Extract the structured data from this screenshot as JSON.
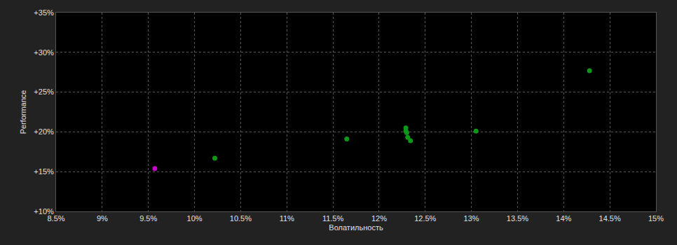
{
  "chart_data": {
    "type": "scatter",
    "x_label": "Волатильность",
    "y_label": "Performance",
    "x": [
      9.57,
      10.22,
      11.65,
      12.29,
      12.29,
      12.3,
      12.31,
      12.34,
      13.05,
      14.28
    ],
    "values": [
      15.4,
      16.7,
      19.1,
      20.5,
      20.1,
      19.9,
      19.3,
      18.9,
      20.1,
      27.7
    ],
    "colors": [
      "#cc00cc",
      "#109618",
      "#109618",
      "#109618",
      "#109618",
      "#109618",
      "#109618",
      "#109618",
      "#109618",
      "#109618"
    ],
    "marker": "circle",
    "xlim": [
      8.5,
      15
    ],
    "xticks": [
      {
        "value": 8.5,
        "label": "8.5%"
      },
      {
        "value": 9,
        "label": "9%"
      },
      {
        "value": 9.5,
        "label": "9.5%"
      },
      {
        "value": 10,
        "label": "10%"
      },
      {
        "value": 10.5,
        "label": "10.5%"
      },
      {
        "value": 11,
        "label": "11%"
      },
      {
        "value": 11.5,
        "label": "11.5%"
      },
      {
        "value": 12,
        "label": "12%"
      },
      {
        "value": 12.5,
        "label": "12.5%"
      },
      {
        "value": 13,
        "label": "13%"
      },
      {
        "value": 13.5,
        "label": "13.5%"
      },
      {
        "value": 14,
        "label": "14%"
      },
      {
        "value": 14.5,
        "label": "14.5%"
      },
      {
        "value": 15,
        "label": "15%"
      }
    ],
    "ylim": [
      10,
      35
    ],
    "yticks": [
      {
        "value": 10,
        "label": "+10%"
      },
      {
        "value": 15,
        "label": "+15%"
      },
      {
        "value": 20,
        "label": "+20%"
      },
      {
        "value": 25,
        "label": "+25%"
      },
      {
        "value": 30,
        "label": "+30%"
      },
      {
        "value": 35,
        "label": "+35%"
      }
    ],
    "grid": true
  }
}
